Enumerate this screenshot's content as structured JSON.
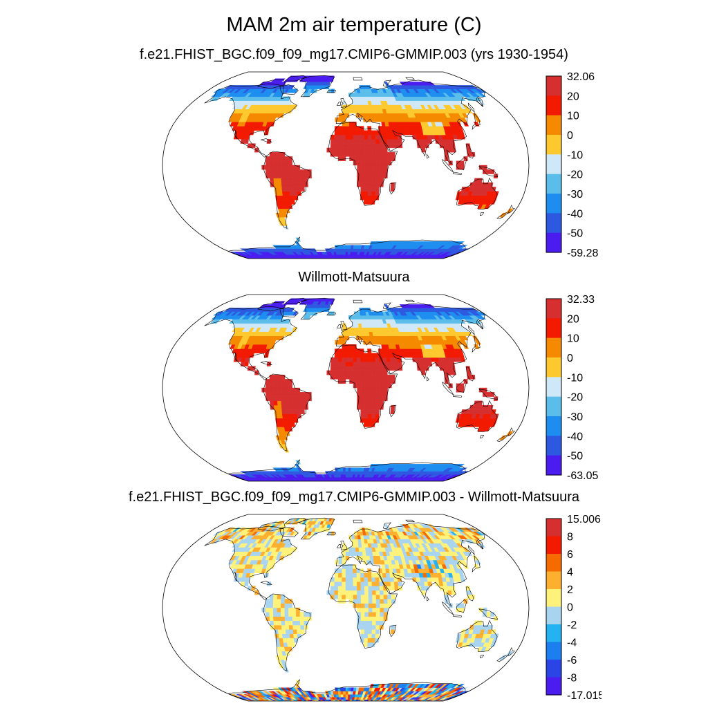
{
  "title": "MAM 2m air temperature (C)",
  "chart_data": [
    {
      "type": "heatmap",
      "projection": "Robinson",
      "title": "f.e21.FHIST_BGC.f09_f09_mg17.CMIP6-GMMIP.003 (yrs 1930-1954)",
      "variable": "2m air temperature",
      "units": "C",
      "colorbar": {
        "max_label": "32.06",
        "min_label": "-59.28",
        "levels": [
          "20",
          "10",
          "0",
          "-10",
          "-20",
          "-30",
          "-40",
          "-50"
        ],
        "colors": [
          "#d62f2f",
          "#f21a00",
          "#f58a00",
          "#fdc92f",
          "#cfe8f7",
          "#5bbdea",
          "#1d8ef0",
          "#2d58e0",
          "#4a1cf0"
        ]
      }
    },
    {
      "type": "heatmap",
      "projection": "Robinson",
      "title": "Willmott-Matsuura",
      "variable": "2m air temperature",
      "units": "C",
      "colorbar": {
        "max_label": "32.33",
        "min_label": "-63.05",
        "levels": [
          "20",
          "10",
          "0",
          "-10",
          "-20",
          "-30",
          "-40",
          "-50"
        ],
        "colors": [
          "#d62f2f",
          "#f21a00",
          "#f58a00",
          "#fdc92f",
          "#cfe8f7",
          "#5bbdea",
          "#1d8ef0",
          "#2d58e0",
          "#4a1cf0"
        ]
      }
    },
    {
      "type": "heatmap",
      "projection": "Robinson",
      "title": "f.e21.FHIST_BGC.f09_f09_mg17.CMIP6-GMMIP.003 - Willmott-Matsuura",
      "variable": "2m air temperature difference",
      "units": "C",
      "colorbar": {
        "max_label": "15.006",
        "min_label": "-17.015",
        "levels": [
          "8",
          "6",
          "4",
          "2",
          "0",
          "-2",
          "-4",
          "-6",
          "-8"
        ],
        "colors": [
          "#d62f2f",
          "#f21a00",
          "#f56b00",
          "#fdb02f",
          "#fff27a",
          "#a9d4f0",
          "#24b2f0",
          "#1d7ef0",
          "#2a44e6",
          "#4a1cf0"
        ]
      }
    }
  ]
}
